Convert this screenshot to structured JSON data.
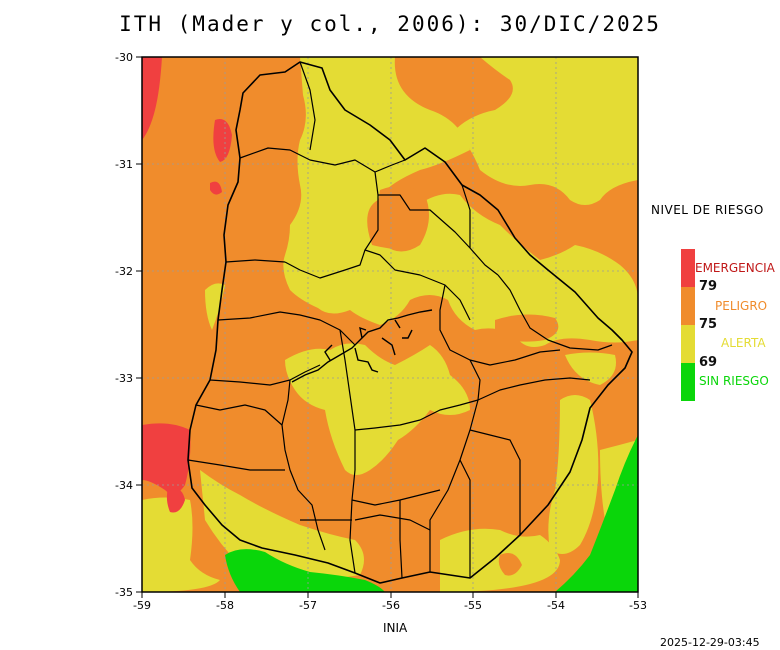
{
  "title": "ITH (Mader y col., 2006): 30/DIC/2025",
  "credit": "INIA",
  "timestamp": "2025-12-29-03:45",
  "axes": {
    "x_ticks": [
      "-59",
      "-58",
      "-57",
      "-56",
      "-55",
      "-54",
      "-53"
    ],
    "y_ticks": [
      "-30",
      "-31",
      "-32",
      "-33",
      "-34",
      "-35"
    ]
  },
  "legend": {
    "title": "NIVEL DE RIESGO",
    "levels": [
      {
        "label": "EMERGENCIA",
        "color": "#f04040",
        "label_color": "#c01818"
      },
      {
        "label": "PELIGRO",
        "color": "#f08c2c",
        "label_color": "#f08c2c"
      },
      {
        "label": "ALERTA",
        "color": "#e4dc34",
        "label_color": "#e4dc34"
      },
      {
        "label": "SIN RIESGO",
        "color": "#0ad60a",
        "label_color": "#0ad60a"
      }
    ],
    "thresholds": [
      "79",
      "75",
      "69"
    ]
  },
  "colors": {
    "emergencia": "#f04040",
    "peligro": "#f08c2c",
    "alerta": "#e4dc34",
    "sin_riesgo": "#0ad60a"
  }
}
